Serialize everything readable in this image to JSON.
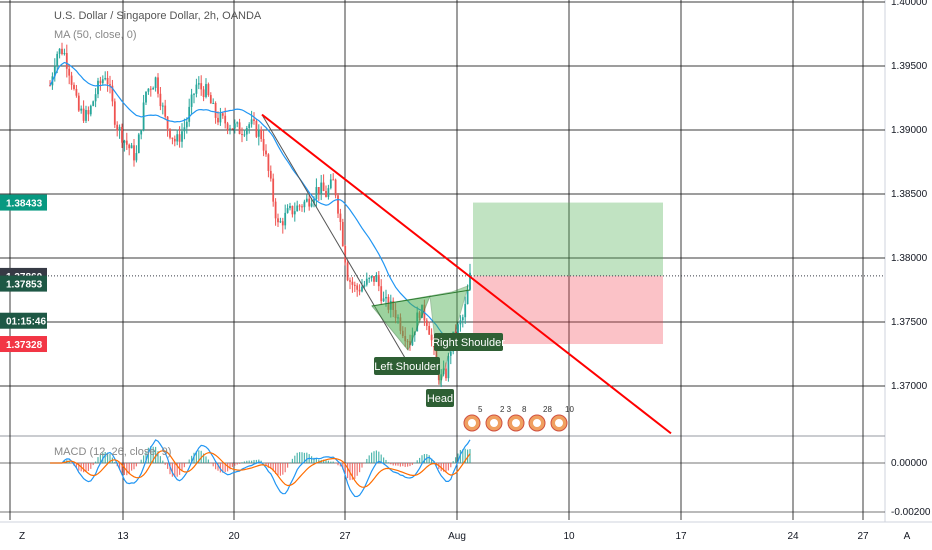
{
  "chart_data": {
    "type": "candlestick",
    "title": "U.S. Dollar / Singapore Dollar, 2h, OANDA",
    "indicator_label": "MA (50, close, 0)",
    "macd_label": "MACD (12, 26, close, 9)",
    "y_ticks": [
      "1.40000",
      "1.39500",
      "1.39000",
      "1.38500",
      "1.38000",
      "1.37500",
      "1.37000"
    ],
    "y_range": [
      1.3667,
      1.4005
    ],
    "macd_ticks": [
      "0.00000",
      "-0.00200"
    ],
    "x_ticks": [
      "13",
      "20",
      "27",
      "Aug",
      "10",
      "17",
      "24",
      "27"
    ],
    "axis_corner": [
      "Z",
      "A"
    ],
    "price_tags": [
      {
        "label": "1.38433",
        "value": 1.38433,
        "color": "#089981"
      },
      {
        "label": "1.37860",
        "value": 1.3786,
        "color": "#363a45"
      },
      {
        "label": "1.37853",
        "value": 1.378,
        "color": "#1e5845"
      },
      {
        "label": "01:15:46",
        "value": 1.3751,
        "color": "#1e5845"
      },
      {
        "label": "1.37328",
        "value": 1.37328,
        "color": "#f23645"
      }
    ],
    "pattern_labels": [
      "Left Shoulder",
      "Head",
      "Right Shoulder"
    ],
    "event_counts": [
      "5",
      "2",
      "3",
      "8",
      "28",
      "10"
    ],
    "trendline": {
      "color": "#ff0000",
      "start_price": 1.3912,
      "end_price": 1.3663
    },
    "position": {
      "entry": 1.3786,
      "target": 1.38433,
      "stop": 1.37328
    },
    "colors": {
      "up": "#26a69a",
      "down": "#ef5350",
      "ma": "#2196f3",
      "macd": "#2196f3",
      "signal": "#ff6d00"
    }
  }
}
